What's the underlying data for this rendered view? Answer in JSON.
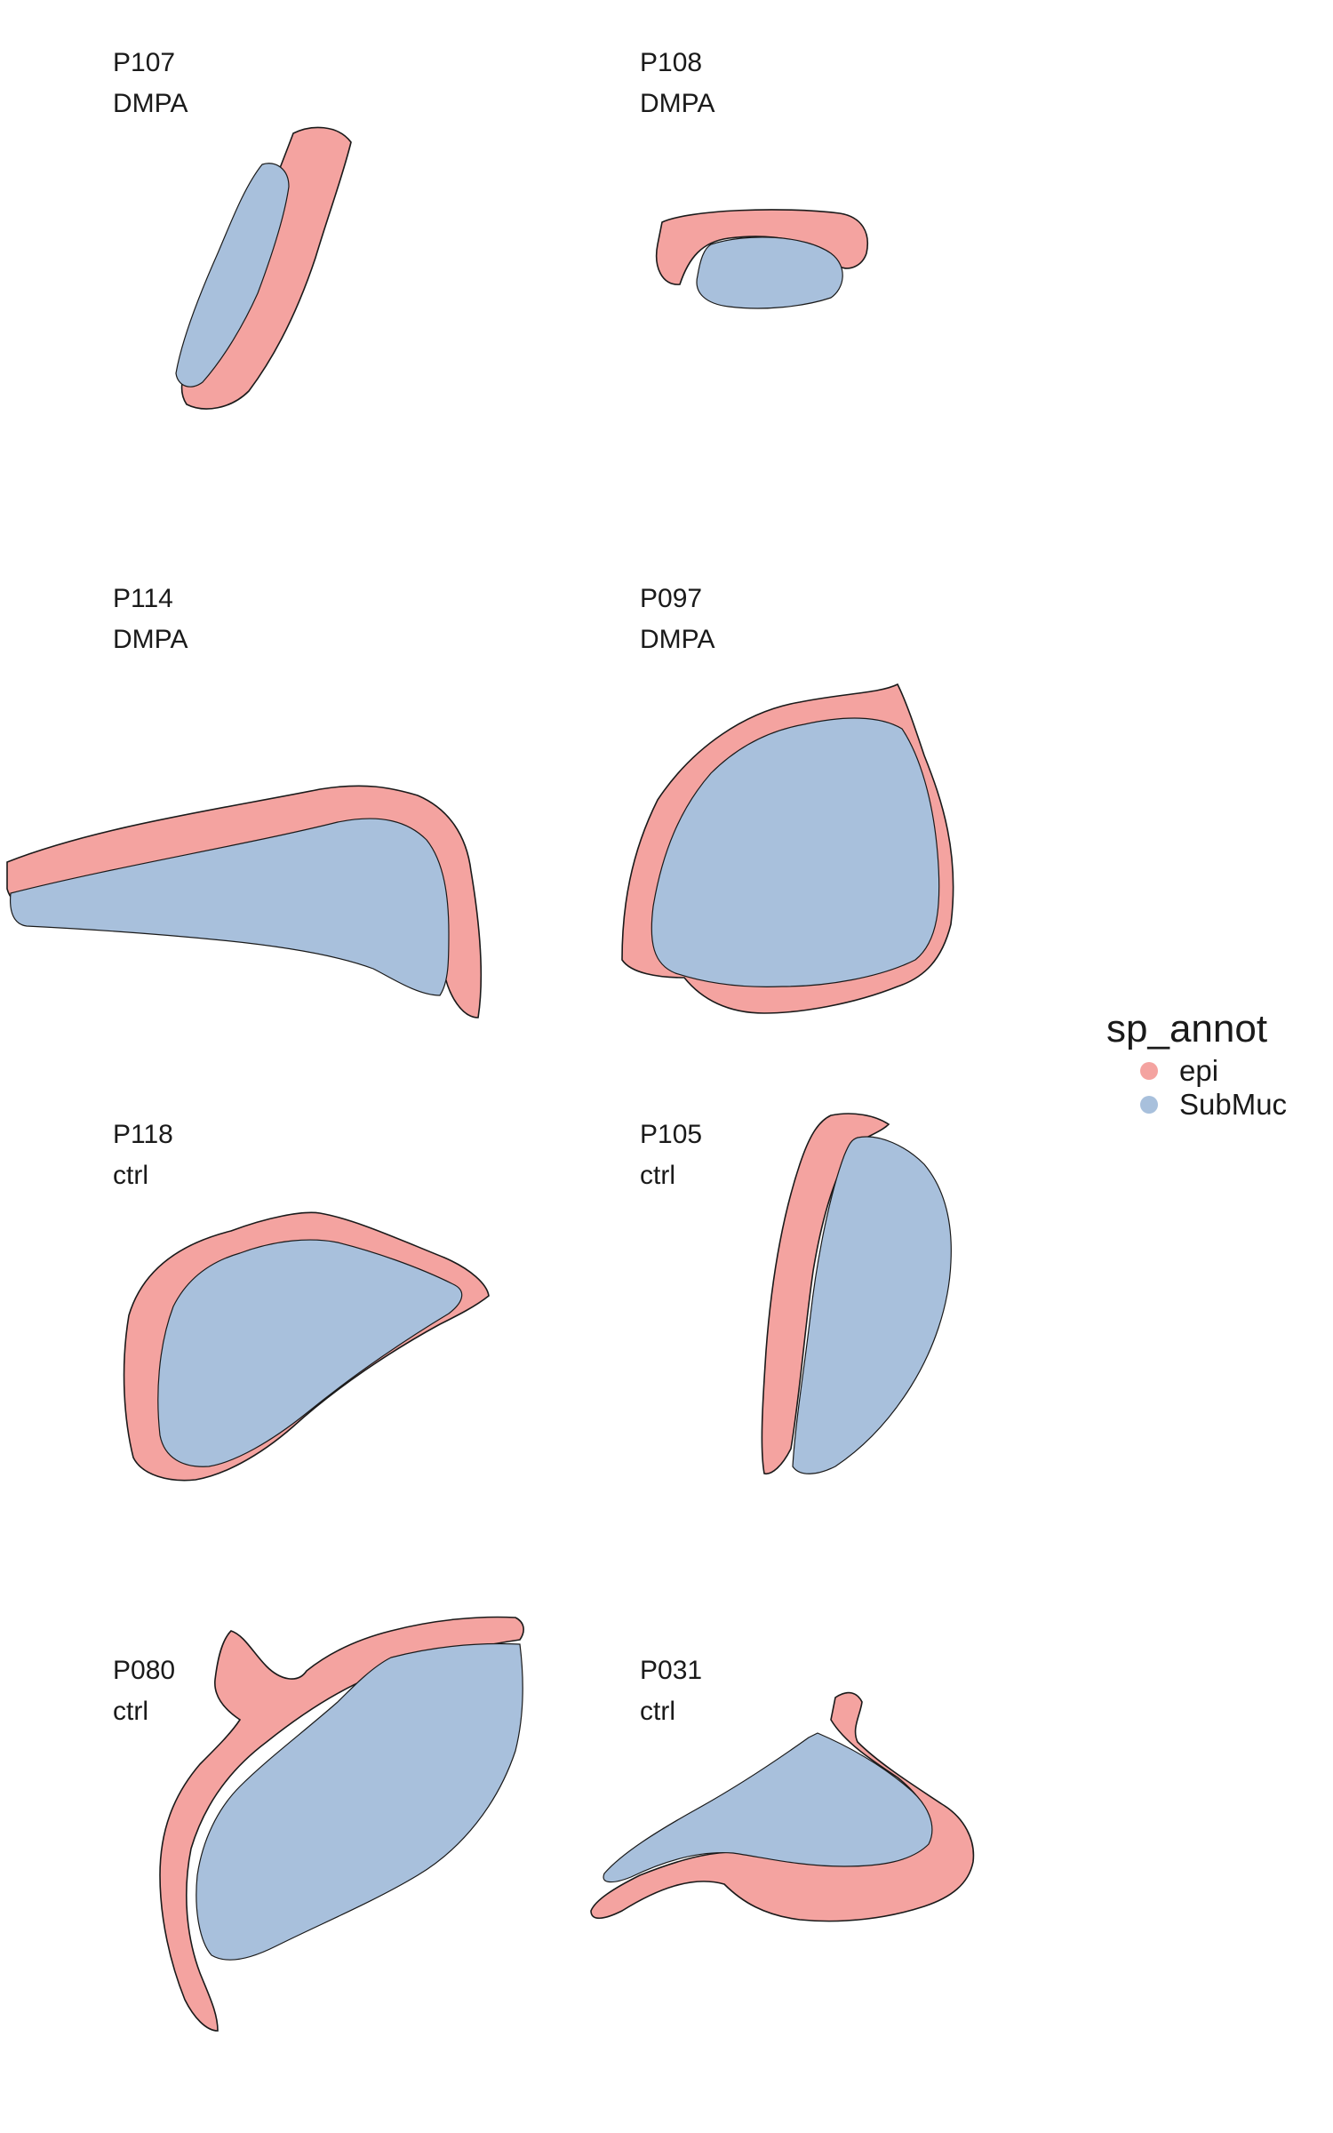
{
  "chart_data": {
    "type": "scatter",
    "description_type": "spatial transcriptomics spot map, faceted by sample",
    "legend": {
      "title": "sp_annot",
      "position": "right",
      "entries": [
        {
          "name": "epi",
          "color": "#F4A3A0"
        },
        {
          "name": "SubMuc",
          "color": "#A8C0DC"
        }
      ]
    },
    "facets": [
      {
        "sample": "P107",
        "group": "DMPA"
      },
      {
        "sample": "P108",
        "group": "DMPA"
      },
      {
        "sample": "P114",
        "group": "DMPA"
      },
      {
        "sample": "P097",
        "group": "DMPA"
      },
      {
        "sample": "P118",
        "group": "ctrl"
      },
      {
        "sample": "P105",
        "group": "ctrl"
      },
      {
        "sample": "P080",
        "group": "ctrl"
      },
      {
        "sample": "P031",
        "group": "ctrl"
      }
    ],
    "grid": false,
    "axes": false
  }
}
